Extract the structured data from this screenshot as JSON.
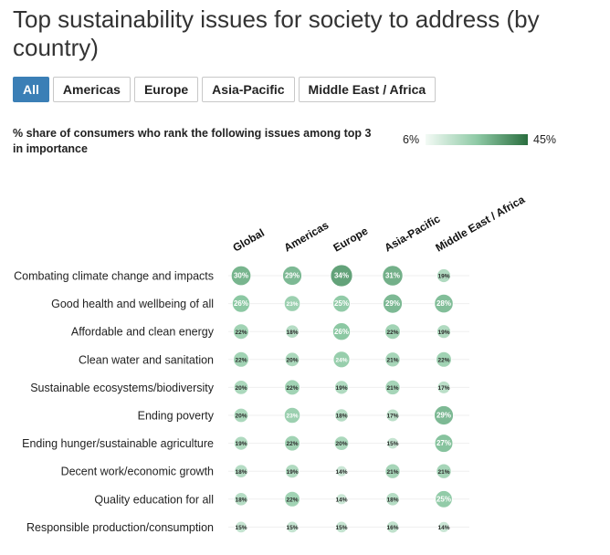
{
  "title": "Top sustainability issues for society to address (by country)",
  "tabs": [
    {
      "label": "All",
      "active": true
    },
    {
      "label": "Americas",
      "active": false
    },
    {
      "label": "Europe",
      "active": false
    },
    {
      "label": "Asia-Pacific",
      "active": false
    },
    {
      "label": "Middle East / Africa",
      "active": false
    }
  ],
  "subtitle": "% share of consumers who rank the following issues among top 3 in importance",
  "legend": {
    "min_label": "6%",
    "max_label": "45%",
    "min": 6,
    "max": 45,
    "color_low": "#f3faf5",
    "color_mid": "#8fcaa6",
    "color_high": "#2a6e3f"
  },
  "chart_data": {
    "type": "heatmap",
    "columns": [
      "Global",
      "Americas",
      "Europe",
      "Asia-Pacific",
      "Middle East / Africa"
    ],
    "rows": [
      {
        "label": "Combating climate change and impacts",
        "values": [
          30,
          29,
          34,
          31,
          19
        ]
      },
      {
        "label": "Good health and wellbeing of all",
        "values": [
          26,
          23,
          25,
          29,
          28
        ]
      },
      {
        "label": "Affordable and clean energy",
        "values": [
          22,
          18,
          26,
          22,
          19
        ]
      },
      {
        "label": "Clean water and sanitation",
        "values": [
          22,
          20,
          24,
          21,
          22
        ]
      },
      {
        "label": "Sustainable ecosystems/biodiversity",
        "values": [
          20,
          22,
          19,
          21,
          17
        ]
      },
      {
        "label": "Ending poverty",
        "values": [
          20,
          23,
          18,
          17,
          29
        ]
      },
      {
        "label": "Ending hunger/sustainable agriculture",
        "values": [
          19,
          22,
          20,
          15,
          27
        ]
      },
      {
        "label": "Decent work/economic growth",
        "values": [
          18,
          19,
          14,
          21,
          21
        ]
      },
      {
        "label": "Quality education for all",
        "values": [
          18,
          22,
          14,
          18,
          25
        ]
      },
      {
        "label": "Responsible production/consumption",
        "values": [
          15,
          15,
          15,
          16,
          14
        ]
      }
    ],
    "value_suffix": "%",
    "scale": [
      6,
      45
    ]
  }
}
